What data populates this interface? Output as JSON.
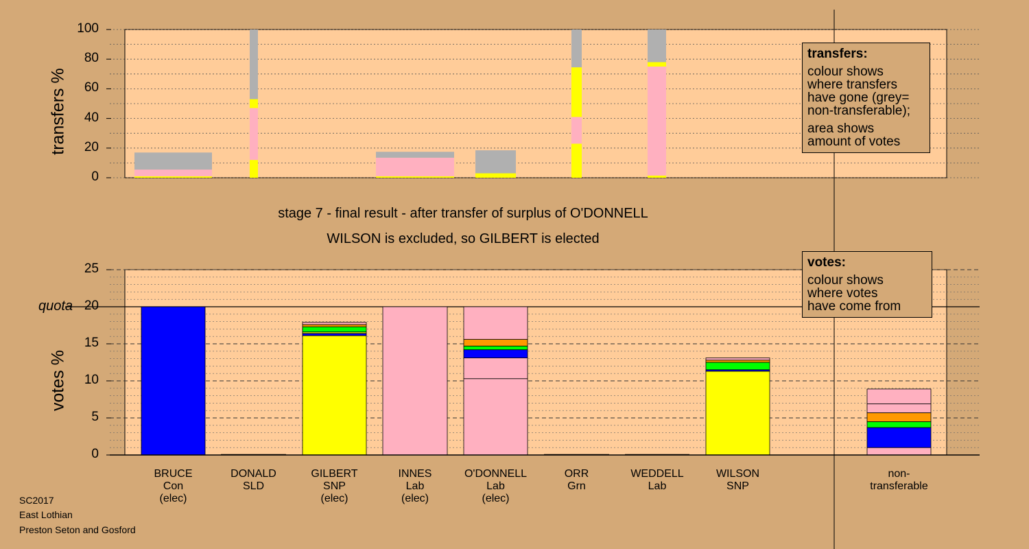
{
  "titles": {
    "stage": "stage 7 - final result - after transfer of surplus of O'DONNELL",
    "result": "WILSON is excluded, so GILBERT is elected"
  },
  "footer": [
    "SC2017",
    "East Lothian",
    "Preston Seton and Gosford"
  ],
  "colors": {
    "background": "#d4a977",
    "plot": "#ffcc99",
    "Con": "#0000ff",
    "SNP": "#ffff00",
    "Lab": "#ffb0c0",
    "Grn": "#00ff00",
    "SLD": "#ff9900",
    "grey": "#b0b0b0"
  },
  "legend_transfers": {
    "title": "transfers:",
    "lines1": [
      "colour shows",
      "where transfers",
      "have gone (grey=",
      "non-transferable);"
    ],
    "lines2": [
      "area shows",
      "amount of votes"
    ]
  },
  "legend_votes": {
    "title": "votes:",
    "lines": [
      "colour shows",
      "where votes",
      "have come from"
    ]
  },
  "chart_data": [
    {
      "type": "bar",
      "name": "transfers",
      "ylabel": "transfers %",
      "ylim": [
        0,
        100
      ],
      "yticks": [
        0,
        20,
        40,
        60,
        80,
        100
      ],
      "columns": [
        {
          "label": "BRUCE",
          "segments": [
            {
              "color": "SNP",
              "value": 1
            },
            {
              "color": "Lab",
              "value": 4.5
            },
            {
              "color": "grey",
              "value": 11.5
            }
          ]
        },
        {
          "label": "DONALD",
          "segments": [
            {
              "color": "SNP",
              "value": 12
            },
            {
              "color": "Lab",
              "value": 35
            },
            {
              "color": "SNP",
              "value": 6
            },
            {
              "color": "grey",
              "value": 47
            }
          ]
        },
        {
          "label": "INNES",
          "segments": [
            {
              "color": "SNP",
              "value": 1
            },
            {
              "color": "Lab",
              "value": 12.5
            },
            {
              "color": "grey",
              "value": 4
            }
          ]
        },
        {
          "label": "O'DONNELL",
          "segments": [
            {
              "color": "SNP",
              "value": 3
            },
            {
              "color": "grey",
              "value": 15.5
            }
          ]
        },
        {
          "label": "ORR",
          "segments": [
            {
              "color": "SNP",
              "value": 23
            },
            {
              "color": "Lab",
              "value": 18
            },
            {
              "color": "SNP",
              "value": 33.5
            },
            {
              "color": "grey",
              "value": 25.5
            }
          ]
        },
        {
          "label": "WEDDELL",
          "segments": [
            {
              "color": "SNP",
              "value": 1.5
            },
            {
              "color": "Lab",
              "value": 73.5
            },
            {
              "color": "SNP",
              "value": 3
            },
            {
              "color": "grey",
              "value": 22
            }
          ]
        }
      ]
    },
    {
      "type": "bar",
      "name": "votes",
      "ylabel": "votes %",
      "ylim": [
        0,
        25
      ],
      "yticks": [
        0,
        5,
        10,
        15,
        20,
        25
      ],
      "quota": 20,
      "quota_label": "quota",
      "categories": [
        {
          "name": "BRUCE",
          "party": "Con",
          "status": "(elec)"
        },
        {
          "name": "DONALD",
          "party": "SLD",
          "status": ""
        },
        {
          "name": "GILBERT",
          "party": "SNP",
          "status": "(elec)"
        },
        {
          "name": "INNES",
          "party": "Lab",
          "status": "(elec)"
        },
        {
          "name": "O'DONNELL",
          "party": "Lab",
          "status": "(elec)"
        },
        {
          "name": "ORR",
          "party": "Grn",
          "status": ""
        },
        {
          "name": "WEDDELL",
          "party": "Lab",
          "status": ""
        },
        {
          "name": "WILSON",
          "party": "SNP",
          "status": ""
        },
        {
          "name": "non-",
          "party": "transferable",
          "status": ""
        }
      ],
      "stacks": [
        [
          {
            "color": "Con",
            "value": 20
          }
        ],
        [],
        [
          {
            "color": "SNP",
            "value": 16.1
          },
          {
            "color": "Con",
            "value": 0.3
          },
          {
            "color": "SNP",
            "value": 0.2
          },
          {
            "color": "Grn",
            "value": 0.7
          },
          {
            "color": "SLD",
            "value": 0.3
          },
          {
            "color": "Lab",
            "value": 0.3
          }
        ],
        [
          {
            "color": "Lab",
            "value": 20
          }
        ],
        [
          {
            "color": "Lab",
            "value": 10.3
          },
          {
            "color": "Lab",
            "value": 2.8
          },
          {
            "color": "Con",
            "value": 1.1
          },
          {
            "color": "Grn",
            "value": 0.5
          },
          {
            "color": "SLD",
            "value": 0.9
          },
          {
            "color": "Lab",
            "value": 4.4
          }
        ],
        [],
        [],
        [
          {
            "color": "SNP",
            "value": 11.3
          },
          {
            "color": "Con",
            "value": 0.2
          },
          {
            "color": "Grn",
            "value": 1.0
          },
          {
            "color": "SLD",
            "value": 0.3
          },
          {
            "color": "Lab",
            "value": 0.3
          }
        ],
        [
          {
            "color": "Lab",
            "value": 1.0
          },
          {
            "color": "Con",
            "value": 2.7
          },
          {
            "color": "Grn",
            "value": 0.8
          },
          {
            "color": "SLD",
            "value": 1.2
          },
          {
            "color": "Lab",
            "value": 1.2
          },
          {
            "color": "Lab",
            "value": 2.0
          }
        ]
      ]
    }
  ]
}
